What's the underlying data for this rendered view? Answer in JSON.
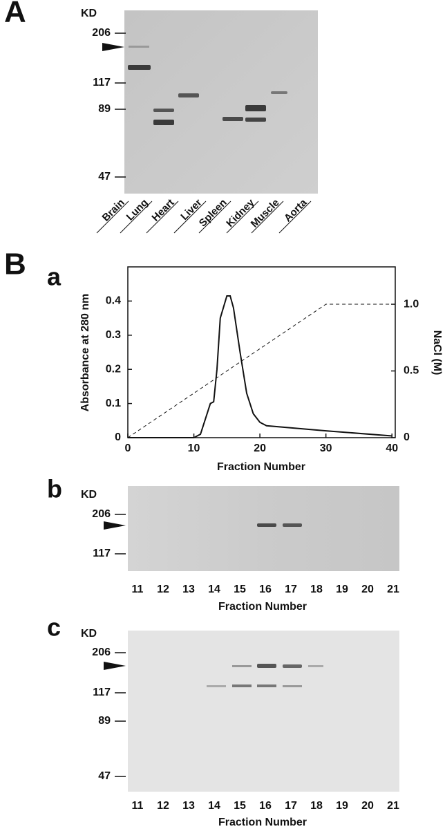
{
  "panel_A": {
    "label": "A",
    "unit": "KD",
    "markers": [
      206,
      117,
      89,
      47
    ],
    "lanes": [
      "Brain",
      "Lung",
      "Heart",
      "Liver",
      "Spleen",
      "Kidney",
      "Muscle",
      "Aorta"
    ]
  },
  "panel_B": {
    "label": "B"
  },
  "chart_data": {
    "type": "line",
    "label": "a",
    "xlabel": "Fraction Number",
    "ylabel": "Absorbance at 280 nm",
    "y2label": "NaCl (M)",
    "xlim": [
      0,
      40.5
    ],
    "xticks": [
      0,
      10,
      20,
      30,
      40
    ],
    "ylim": [
      0,
      0.5
    ],
    "yticks": [
      0,
      0.1,
      0.2,
      0.3,
      0.4
    ],
    "y2lim": [
      0,
      1.28
    ],
    "y2ticks": [
      0,
      0.5,
      {
        "value": 1,
        "label": "1.0"
      }
    ],
    "series": [
      {
        "color": "#111111",
        "dashed": false,
        "x": [
          0,
          10,
          11,
          12,
          12.5,
          13,
          13.5,
          14,
          15,
          15.5,
          16,
          17,
          18,
          19,
          20,
          21,
          30,
          40
        ],
        "values": [
          0,
          0,
          0.01,
          0.07,
          0.1,
          0.105,
          0.2,
          0.35,
          0.415,
          0.415,
          0.38,
          0.25,
          0.13,
          0.07,
          0.045,
          0.035,
          0.02,
          0.005
        ]
      },
      {
        "color": "#111111",
        "dashed": true,
        "axis": "y2",
        "x": [
          0,
          30,
          40
        ],
        "values": [
          0,
          1,
          1
        ]
      }
    ]
  },
  "panel_Bb": {
    "label": "b",
    "unit": "KD",
    "markers": [
      206,
      117
    ],
    "fractions": [
      11,
      12,
      13,
      14,
      15,
      16,
      17,
      18,
      19,
      20,
      21
    ],
    "xlabel": "Fraction Number"
  },
  "panel_Bc": {
    "label": "c",
    "unit": "KD",
    "markers": [
      206,
      117,
      89,
      47
    ],
    "fractions": [
      11,
      12,
      13,
      14,
      15,
      16,
      17,
      18,
      19,
      20,
      21
    ],
    "xlabel": "Fraction Number"
  }
}
